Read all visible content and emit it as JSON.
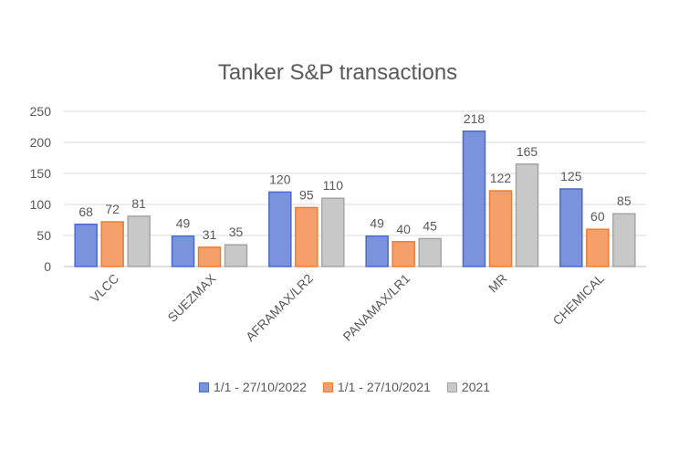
{
  "chart_data": {
    "type": "bar",
    "title": "Tanker S&P transactions",
    "xlabel": "",
    "ylabel": "",
    "ylim": [
      0,
      250
    ],
    "yticks": [
      0,
      50,
      100,
      150,
      200,
      250
    ],
    "grid": true,
    "legend_position": "bottom",
    "categories": [
      "VLCC",
      "SUEZMAX",
      "AFRAMAX/LR2",
      "PANAMAX/LR1",
      "MR",
      "CHEMICAL"
    ],
    "series": [
      {
        "name": "1/1 - 27/10/2022",
        "values": [
          68,
          49,
          120,
          49,
          218,
          125
        ],
        "color": "#7b93dc",
        "border": "#4a6bcf"
      },
      {
        "name": "1/1 - 27/10/2021",
        "values": [
          72,
          31,
          95,
          40,
          122,
          60
        ],
        "color": "#f5a06a",
        "border": "#ef7d2f"
      },
      {
        "name": "2021",
        "values": [
          81,
          35,
          110,
          45,
          165,
          85
        ],
        "color": "#c8c8c8",
        "border": "#a5a5a5"
      }
    ]
  }
}
